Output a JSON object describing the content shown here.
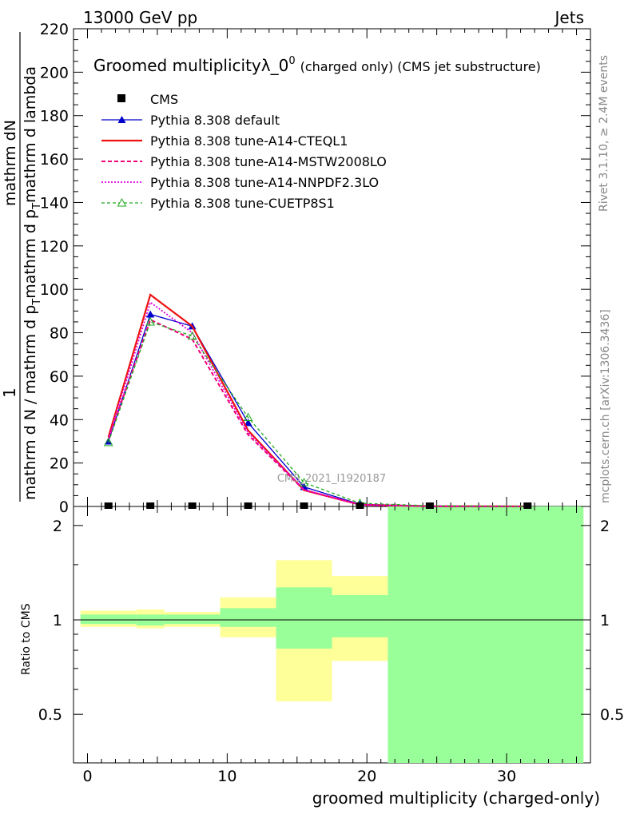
{
  "header": {
    "left": "13000 GeV pp",
    "right": "Jets"
  },
  "side_labels": {
    "rivet": "Rivet 3.1.10, ≥ 2.4M events",
    "mcplots": "mcplots.cern.ch [arXiv:1306.3436]"
  },
  "chart_data": {
    "type": "line",
    "title": "Groomed multiplicityλ_0",
    "title_sup": "0",
    "title_suffix": "(charged only) (CMS jet substructure)",
    "watermark": "CMS_2021_I1920187",
    "xlabel": "groomed multiplicity (charged-only)",
    "ylabel_parts": {
      "numerator_one": "1",
      "numerator_dn": "mathrm d",
      "denominator_left": "mathrm d N / mathrm d p",
      "denominator_right": "mathrm d p",
      "denominator_rest": "mathrm d lambda",
      "sub_T": "T"
    },
    "ratio_ylabel": "Ratio to CMS",
    "xlim": [
      -1,
      36
    ],
    "ylim": [
      0,
      220
    ],
    "ratio_ylim": [
      0.35,
      2.3
    ],
    "x_ticks": [
      0,
      10,
      20,
      30
    ],
    "y_ticks": [
      0,
      20,
      40,
      60,
      80,
      100,
      120,
      140,
      160,
      180,
      200,
      220
    ],
    "ratio_ticks": [
      0.5,
      1,
      2
    ],
    "bins": [
      [
        -0.5,
        3.5
      ],
      [
        3.5,
        5.5
      ],
      [
        5.5,
        9.5
      ],
      [
        9.5,
        13.5
      ],
      [
        13.5,
        17.5
      ],
      [
        17.5,
        21.5
      ],
      [
        21.5,
        27.5
      ],
      [
        27.5,
        35.5
      ]
    ],
    "x_centers": [
      1.5,
      4.5,
      7.5,
      11.5,
      15.5,
      19.5,
      24.5,
      31.5
    ],
    "data": {
      "name": "CMS",
      "values": [
        0,
        0,
        0,
        0,
        0,
        0,
        0,
        0
      ]
    },
    "series": [
      {
        "name": "Pythia 8.308 default",
        "color": "#0000cc",
        "dash": "",
        "marker": "triangle-filled",
        "values": [
          30,
          88.5,
          83,
          38.5,
          9,
          1,
          0.2,
          0.05
        ]
      },
      {
        "name": "Pythia 8.308 tune-A14-CTEQL1",
        "color": "#ee1111",
        "dash": "",
        "marker": "",
        "width": 2.2,
        "values": [
          32,
          97.5,
          83,
          35,
          7.5,
          0.8,
          0.1,
          0.02
        ]
      },
      {
        "name": "Pythia 8.308 tune-A14-MSTW2008LO",
        "color": "#ee0077",
        "dash": "5,3",
        "marker": "",
        "width": 2,
        "values": [
          31,
          86,
          77,
          33,
          7.5,
          0.8,
          0.1,
          0.02
        ]
      },
      {
        "name": "Pythia 8.308 tune-A14-NNPDF2.3LO",
        "color": "#dd00dd",
        "dash": "2,2",
        "marker": "",
        "width": 1.8,
        "values": [
          31,
          94,
          80,
          34,
          7.8,
          0.8,
          0.1,
          0.02
        ]
      },
      {
        "name": "Pythia 8.308 tune-CUETP8S1",
        "color": "#22aa22",
        "dash": "4,3",
        "marker": "triangle-open",
        "values": [
          29.5,
          85,
          78.5,
          41,
          11,
          1.5,
          0.3,
          0.1
        ]
      }
    ],
    "ratio_bands": [
      {
        "bin": [
          0.5,
          4.5
        ],
        "yellow": [
          0.95,
          1.07
        ],
        "green": [
          0.97,
          1.04
        ]
      },
      {
        "bin": [
          4.5,
          9.5
        ],
        "yellow": [
          0.94,
          1.08
        ],
        "green": [
          0.96,
          1.04
        ]
      },
      {
        "bin": [
          9.5,
          13.5
        ],
        "yellow": [
          0.95,
          1.06
        ],
        "green": [
          0.97,
          1.04
        ]
      },
      {
        "bin": [
          13.5,
          17.5
        ],
        "yellow": [
          0.88,
          1.18
        ],
        "green": [
          0.95,
          1.09
        ]
      },
      {
        "bin": [
          17.5,
          21.5
        ],
        "yellow": [
          0.55,
          1.55
        ],
        "green": [
          0.81,
          1.27
        ]
      },
      {
        "bin": [
          21.5,
          35.5
        ],
        "yellow": [
          0.74,
          1.38
        ],
        "green": [
          0.88,
          1.2
        ]
      },
      {
        "bin": [
          21.5,
          35.5
        ],
        "yellow": [
          0.35,
          2.3
        ],
        "green": [
          0.35,
          2.3
        ]
      }
    ],
    "colors": {
      "yellow_band": "#ffff99",
      "green_band": "#99ff99",
      "side_text": "#888888",
      "watermark": "#999999"
    }
  }
}
